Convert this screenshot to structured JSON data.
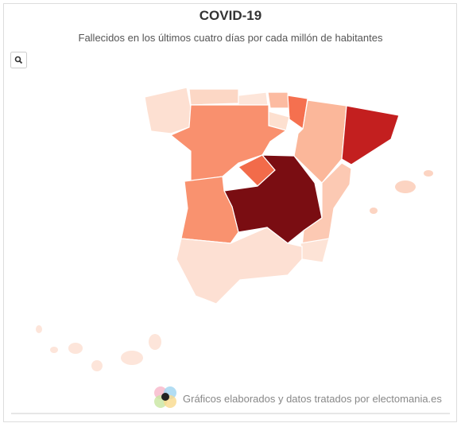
{
  "header": {
    "title": "COVID-19",
    "subtitle": "Fallecidos en los últimos cuatro días por cada millón de habitantes"
  },
  "footer": {
    "credit": "Gráficos elaborados y datos tratados por electomania.es"
  }
}
